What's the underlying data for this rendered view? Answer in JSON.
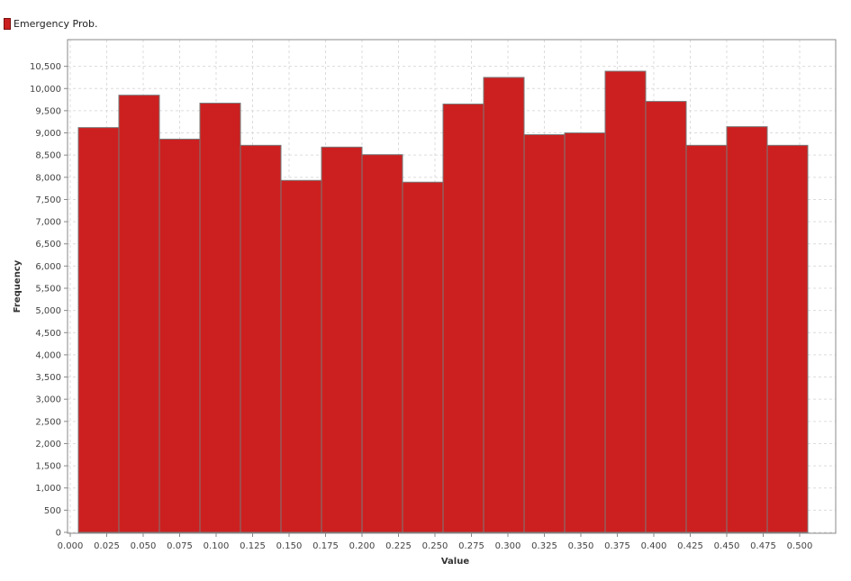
{
  "chart_data": {
    "type": "bar",
    "subtype": "histogram",
    "xlabel": "Value",
    "ylabel": "Frequency",
    "xlim": [
      0.0,
      0.5
    ],
    "ylim": [
      0,
      11000
    ],
    "x_tick_labels": [
      "0.000",
      "0.025",
      "0.050",
      "0.075",
      "0.100",
      "0.125",
      "0.150",
      "0.175",
      "0.200",
      "0.225",
      "0.250",
      "0.275",
      "0.300",
      "0.325",
      "0.350",
      "0.375",
      "0.400",
      "0.425",
      "0.450",
      "0.475",
      "0.500"
    ],
    "y_tick_labels": [
      "0",
      "500",
      "1,000",
      "1,500",
      "2,000",
      "2,500",
      "3,000",
      "3,500",
      "4,000",
      "4,500",
      "5,000",
      "5,500",
      "6,000",
      "6,500",
      "7,000",
      "7,500",
      "8,000",
      "8,500",
      "9,000",
      "9,500",
      "10,000",
      "10,500"
    ],
    "grid": true,
    "legend_position": "top-left",
    "series": [
      {
        "name": "Emergency Prob.",
        "color": "#cc2020",
        "bin_width": 0.02778,
        "bin_starts": [
          0.00556,
          0.03333,
          0.06111,
          0.08889,
          0.11667,
          0.14444,
          0.17222,
          0.2,
          0.22778,
          0.25556,
          0.28333,
          0.31111,
          0.33889,
          0.36667,
          0.39444,
          0.42222,
          0.45,
          0.47778
        ],
        "values": [
          9120,
          9850,
          8860,
          9670,
          8720,
          7930,
          8680,
          8510,
          7890,
          9650,
          10250,
          8960,
          9000,
          10390,
          9710,
          8720,
          9140,
          8720
        ]
      }
    ]
  }
}
